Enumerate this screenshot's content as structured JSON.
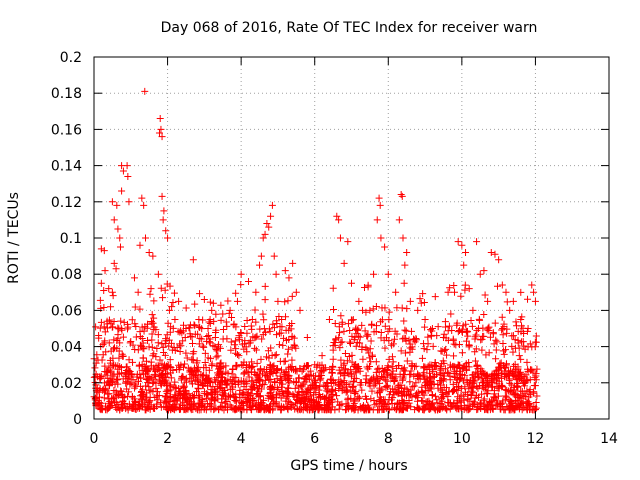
{
  "chart_data": {
    "type": "scatter",
    "title": "Day 068 of 2016, Rate Of TEC Index for receiver warn",
    "xlabel": "GPS time / hours",
    "ylabel": "ROTI / TECUs",
    "xlim": [
      0,
      14
    ],
    "ylim": [
      0,
      0.2
    ],
    "xticks": [
      0,
      2,
      4,
      6,
      8,
      10,
      12,
      14
    ],
    "xtick_labels": [
      "0",
      "2",
      "4",
      "6",
      "8",
      "10",
      "12",
      "14"
    ],
    "yticks": [
      0,
      0.02,
      0.04,
      0.06,
      0.08,
      0.1,
      0.12,
      0.14,
      0.16,
      0.18,
      0.2
    ],
    "ytick_labels": [
      "0",
      "0.02",
      "0.04",
      "0.06",
      "0.08",
      "0.1",
      "0.12",
      "0.14",
      "0.16",
      "0.18",
      "0.2"
    ],
    "grid": true,
    "marker": "+",
    "color": "#ff0000",
    "x_range_of_data": [
      0,
      12.05
    ],
    "baseline_band": [
      0.005,
      0.03
    ],
    "series": [
      {
        "name": "ROTI",
        "points": [
          [
            1.38,
            0.181
          ],
          [
            1.8,
            0.166
          ],
          [
            1.82,
            0.16
          ],
          [
            1.85,
            0.156
          ],
          [
            1.78,
            0.158
          ],
          [
            0.75,
            0.14
          ],
          [
            0.9,
            0.14
          ],
          [
            0.8,
            0.137
          ],
          [
            0.92,
            0.134
          ],
          [
            0.75,
            0.126
          ],
          [
            0.62,
            0.118
          ],
          [
            0.95,
            0.12
          ],
          [
            1.3,
            0.122
          ],
          [
            1.35,
            0.118
          ],
          [
            1.85,
            0.123
          ],
          [
            1.9,
            0.115
          ],
          [
            1.95,
            0.104
          ],
          [
            2.0,
            0.1
          ],
          [
            1.88,
            0.11
          ],
          [
            0.2,
            0.094
          ],
          [
            0.28,
            0.093
          ],
          [
            0.55,
            0.086
          ],
          [
            0.6,
            0.083
          ],
          [
            0.7,
            0.1
          ],
          [
            0.72,
            0.095
          ],
          [
            1.25,
            0.096
          ],
          [
            1.4,
            0.1
          ],
          [
            1.5,
            0.092
          ],
          [
            1.6,
            0.09
          ],
          [
            0.3,
            0.082
          ],
          [
            0.2,
            0.075
          ],
          [
            0.4,
            0.072
          ],
          [
            0.5,
            0.07
          ],
          [
            0.45,
            0.062
          ],
          [
            1.1,
            0.078
          ],
          [
            1.2,
            0.07
          ],
          [
            1.55,
            0.072
          ],
          [
            1.75,
            0.08
          ],
          [
            2.05,
            0.06
          ],
          [
            0.5,
            0.12
          ],
          [
            0.55,
            0.11
          ],
          [
            0.65,
            0.105
          ],
          [
            2.7,
            0.088
          ],
          [
            3.0,
            0.066
          ],
          [
            3.2,
            0.06
          ],
          [
            3.5,
            0.058
          ],
          [
            2.5,
            0.05
          ],
          [
            2.85,
            0.055
          ],
          [
            3.3,
            0.045
          ],
          [
            3.1,
            0.05
          ],
          [
            3.7,
            0.06
          ],
          [
            3.9,
            0.065
          ],
          [
            4.0,
            0.08
          ],
          [
            4.2,
            0.076
          ],
          [
            4.4,
            0.07
          ],
          [
            4.5,
            0.085
          ],
          [
            4.55,
            0.09
          ],
          [
            4.6,
            0.1
          ],
          [
            4.65,
            0.102
          ],
          [
            4.7,
            0.108
          ],
          [
            4.75,
            0.106
          ],
          [
            4.8,
            0.112
          ],
          [
            4.85,
            0.118
          ],
          [
            4.9,
            0.09
          ],
          [
            4.95,
            0.08
          ],
          [
            5.2,
            0.082
          ],
          [
            5.3,
            0.078
          ],
          [
            5.4,
            0.086
          ],
          [
            5.5,
            0.07
          ],
          [
            5.0,
            0.065
          ],
          [
            5.1,
            0.055
          ],
          [
            5.6,
            0.06
          ],
          [
            6.4,
            0.055
          ],
          [
            6.6,
            0.112
          ],
          [
            6.65,
            0.11
          ],
          [
            6.7,
            0.1
          ],
          [
            6.9,
            0.098
          ],
          [
            6.8,
            0.086
          ],
          [
            7.0,
            0.075
          ],
          [
            7.2,
            0.065
          ],
          [
            7.3,
            0.06
          ],
          [
            7.5,
            0.06
          ],
          [
            7.75,
            0.122
          ],
          [
            7.78,
            0.118
          ],
          [
            7.7,
            0.11
          ],
          [
            7.8,
            0.1
          ],
          [
            7.9,
            0.095
          ],
          [
            7.6,
            0.08
          ],
          [
            8.0,
            0.08
          ],
          [
            8.2,
            0.07
          ],
          [
            8.35,
            0.124
          ],
          [
            8.38,
            0.123
          ],
          [
            8.3,
            0.11
          ],
          [
            8.4,
            0.1
          ],
          [
            8.5,
            0.092
          ],
          [
            8.45,
            0.085
          ],
          [
            8.6,
            0.065
          ],
          [
            8.8,
            0.06
          ],
          [
            9.0,
            0.055
          ],
          [
            9.2,
            0.05
          ],
          [
            9.5,
            0.045
          ],
          [
            9.9,
            0.098
          ],
          [
            10.0,
            0.096
          ],
          [
            10.1,
            0.092
          ],
          [
            10.05,
            0.085
          ],
          [
            10.2,
            0.072
          ],
          [
            10.4,
            0.098
          ],
          [
            10.5,
            0.08
          ],
          [
            10.6,
            0.082
          ],
          [
            10.8,
            0.092
          ],
          [
            10.9,
            0.091
          ],
          [
            11.0,
            0.088
          ],
          [
            11.1,
            0.074
          ],
          [
            11.2,
            0.07
          ],
          [
            11.4,
            0.065
          ],
          [
            11.6,
            0.055
          ],
          [
            11.9,
            0.074
          ],
          [
            11.95,
            0.07
          ],
          [
            12.0,
            0.065
          ],
          [
            11.8,
            0.05
          ],
          [
            10.3,
            0.06
          ],
          [
            9.7,
            0.058
          ],
          [
            9.8,
            0.07
          ],
          [
            10.7,
            0.065
          ],
          [
            11.3,
            0.06
          ],
          [
            2.3,
            0.065
          ],
          [
            2.2,
            0.055
          ],
          [
            3.8,
            0.052
          ],
          [
            5.8,
            0.045
          ],
          [
            6.2,
            0.035
          ],
          [
            6.0,
            0.03
          ]
        ]
      }
    ]
  }
}
